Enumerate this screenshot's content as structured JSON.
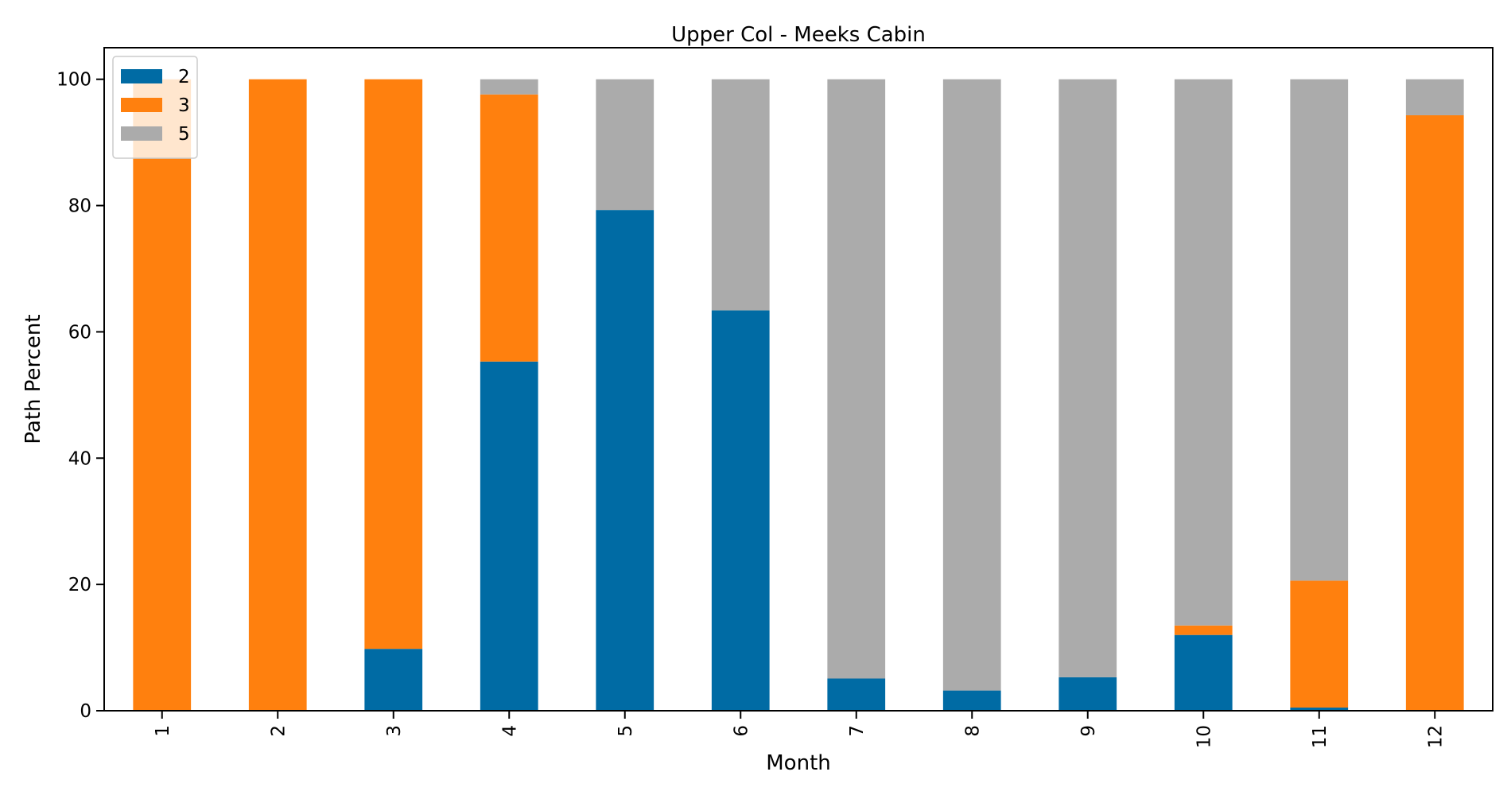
{
  "chart_data": {
    "type": "bar",
    "stacked": true,
    "title": "Upper Col - Meeks Cabin",
    "xlabel": "Month",
    "ylabel": "Path Percent",
    "categories": [
      "1",
      "2",
      "3",
      "4",
      "5",
      "6",
      "7",
      "8",
      "9",
      "10",
      "11",
      "12"
    ],
    "ylim": [
      0,
      105
    ],
    "yticks": [
      0,
      20,
      40,
      60,
      80,
      100
    ],
    "grid": false,
    "legend_position": "top-left",
    "series": [
      {
        "name": "2",
        "color": "#006BA4",
        "values": [
          0,
          0,
          9.8,
          55.3,
          79.3,
          63.4,
          5.1,
          3.2,
          5.3,
          12.0,
          0.5,
          0
        ]
      },
      {
        "name": "3",
        "color": "#FF800E",
        "values": [
          100,
          100,
          90.2,
          42.3,
          0,
          0,
          0,
          0,
          0,
          1.5,
          20.1,
          94.3
        ]
      },
      {
        "name": "5",
        "color": "#ABABAB",
        "values": [
          0,
          0,
          0,
          2.4,
          20.7,
          36.6,
          94.9,
          96.8,
          94.7,
          86.5,
          79.4,
          5.7
        ]
      }
    ]
  }
}
